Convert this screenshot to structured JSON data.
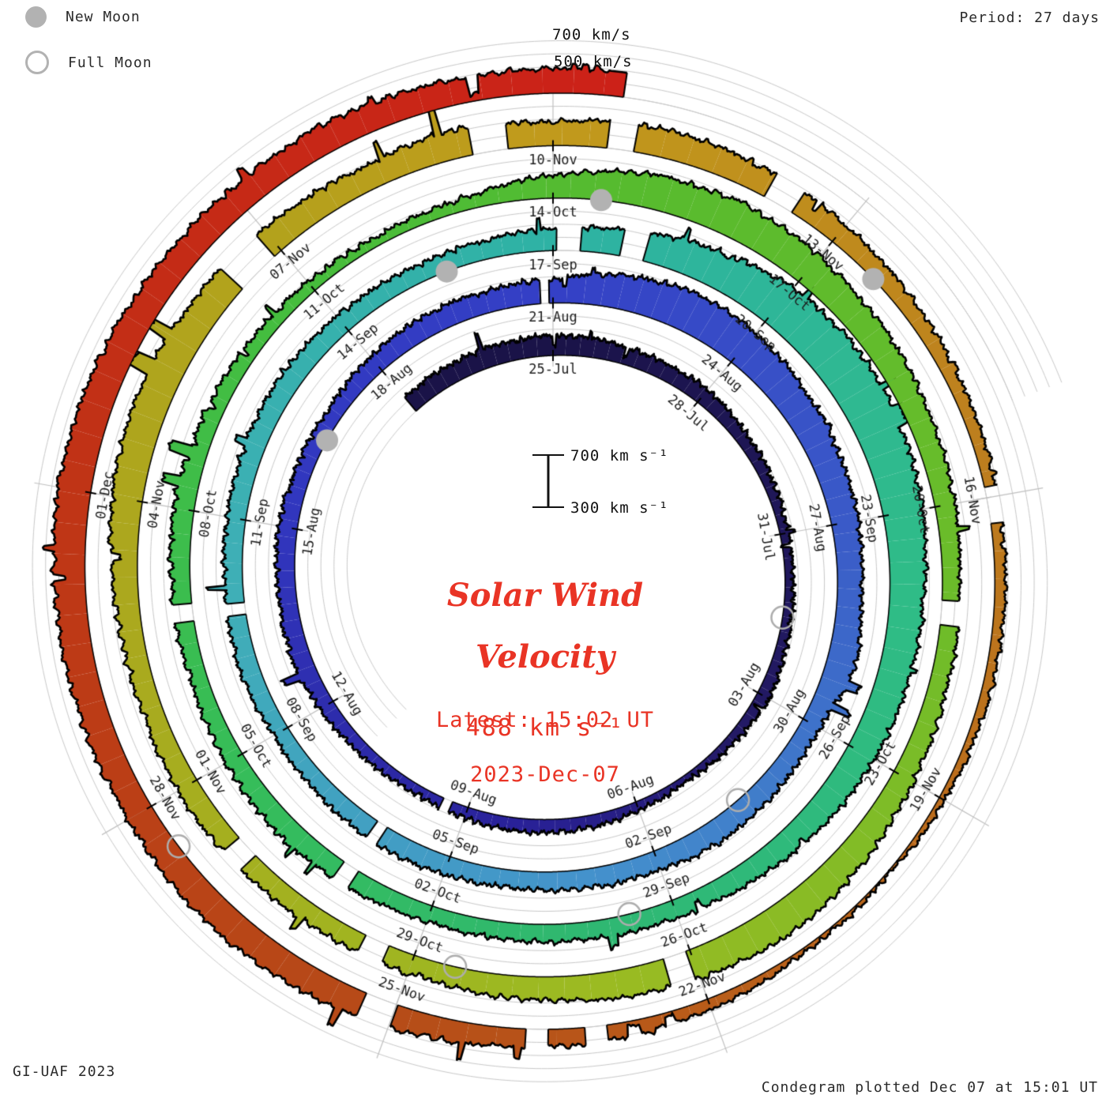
{
  "legend": {
    "new_moon": "New Moon",
    "full_moon": "Full Moon"
  },
  "header": {
    "period_label": "Period: 27 days"
  },
  "footer": {
    "credit": "GI-UAF 2023",
    "plotted": "Condegram plotted Dec 07 at 15:01 UT"
  },
  "outer_scale": {
    "line1": "700 km/s",
    "line2": "500 km/s"
  },
  "scale_bar": {
    "top_label": "700 km s⁻¹",
    "bottom_label": "300 km s⁻¹"
  },
  "center": {
    "title_line1": "Solar Wind",
    "title_line2": "Velocity",
    "current_speed": "488 km s⁻¹",
    "latest_line1": "Latest: 15:02 UT",
    "latest_line2": "2023-Dec-07"
  },
  "chart_data": {
    "type": "spiral_polar_condegram",
    "title": "Solar Wind Velocity",
    "period_days_per_revolution": 27,
    "angle_direction": "clockwise_from_top",
    "start_date": "2023-07-22",
    "end_date_utc": "2023-12-07 15:02 UT",
    "latest_value_km_s": 488,
    "velocity_axis_range_km_s": [
      300,
      700
    ],
    "velocity_gridlines_km_s": [
      300,
      400,
      500,
      600,
      700
    ],
    "ring_crossing_labels": [
      "25-Jul",
      "28-Jul",
      "31-Jul",
      "03-Aug",
      "06-Aug",
      "09-Aug",
      "12-Aug",
      "15-Aug",
      "18-Aug",
      "21-Aug",
      "24-Aug",
      "27-Aug",
      "30-Aug",
      "02-Sep",
      "05-Sep",
      "08-Sep",
      "11-Sep",
      "14-Sep",
      "17-Sep",
      "20-Sep",
      "23-Sep",
      "26-Sep",
      "29-Sep",
      "02-Oct",
      "05-Oct",
      "08-Oct",
      "11-Oct",
      "14-Oct",
      "17-Oct",
      "20-Oct",
      "23-Oct",
      "26-Oct",
      "29-Oct",
      "01-Nov",
      "04-Nov",
      "07-Nov",
      "10-Nov",
      "13-Nov",
      "16-Nov",
      "19-Nov",
      "22-Nov",
      "25-Nov",
      "28-Nov",
      "01-Dec"
    ],
    "label_interval_days": 3,
    "daily_velocity_km_s": [
      430,
      445,
      450,
      455,
      440,
      420,
      430,
      400,
      380,
      365,
      360,
      375,
      400,
      370,
      345,
      370,
      395,
      405,
      385,
      365,
      385,
      420,
      445,
      435,
      445,
      425,
      415,
      440,
      460,
      465,
      485,
      560,
      610,
      585,
      555,
      525,
      505,
      485,
      520,
      445,
      455,
      475,
      455,
      445,
      435,
      445,
      455,
      435,
      425,
      445,
      435,
      445,
      455,
      465,
      445,
      430,
      440,
      465,
      505,
      570,
      640,
      660,
      640,
      605,
      560,
      545,
      530,
      495,
      460,
      440,
      435,
      430,
      425,
      445,
      465,
      445,
      425,
      440,
      460,
      435,
      410,
      385,
      365,
      395,
      475,
      560,
      585,
      550,
      515,
      478,
      450,
      430,
      442,
      468,
      515,
      555,
      535,
      498,
      468,
      448,
      440,
      458,
      468,
      452,
      478,
      535,
      558,
      540,
      515,
      482,
      520,
      482,
      515,
      498,
      458,
      422,
      400,
      388,
      378,
      372,
      345,
      318,
      332,
      388,
      420,
      445,
      482,
      515,
      522,
      505,
      515,
      535,
      552,
      538,
      520,
      502,
      515,
      498,
      488
    ],
    "transient_spikes": [
      {
        "t": 18.6,
        "dv": 130,
        "w": 0.1
      },
      {
        "t": 35.3,
        "dv": 100,
        "w": 0.12
      },
      {
        "t": 35.65,
        "dv": 120,
        "w": 0.1
      },
      {
        "t": 49.0,
        "dv": 90,
        "w": 0.08
      },
      {
        "t": 58.9,
        "dv": 60,
        "w": 0.25
      },
      {
        "t": 66.8,
        "dv": 80,
        "w": 0.1
      },
      {
        "t": 75.3,
        "dv": 130,
        "w": 0.1
      },
      {
        "t": 75.65,
        "dv": 150,
        "w": 0.12
      },
      {
        "t": 103.3,
        "dv": 150,
        "w": 0.14
      },
      {
        "t": 103.65,
        "dv": 160,
        "w": 0.1
      },
      {
        "t": 106.9,
        "dv": 265,
        "w": 0.07
      },
      {
        "t": 120.4,
        "dv": -70,
        "w": 0.1
      },
      {
        "t": 120.75,
        "dv": -80,
        "w": 0.12
      },
      {
        "t": 134.3,
        "dv": -140,
        "w": 0.08
      }
    ],
    "data_gaps_days_since_jul25": [
      [
        15.3,
        15.45
      ],
      [
        26.82,
        26.93
      ],
      [
        43.0,
        43.15
      ],
      [
        46.7,
        46.85
      ],
      [
        54.05,
        54.35
      ],
      [
        54.9,
        55.2
      ],
      [
        70.0,
        70.2
      ],
      [
        73.7,
        73.9
      ],
      [
        88.05,
        88.3
      ],
      [
        93.05,
        93.3
      ],
      [
        96.3,
        96.55
      ],
      [
        98.0,
        98.25
      ],
      [
        104.45,
        104.9
      ],
      [
        107.2,
        107.55
      ],
      [
        108.55,
        108.8
      ],
      [
        110.2,
        110.5
      ],
      [
        113.9,
        114.25
      ],
      [
        121.0,
        121.2
      ],
      [
        121.55,
        121.75
      ],
      [
        123.0,
        123.3
      ]
    ],
    "moons": {
      "new_moon_dates": [
        "2023-08-16",
        "2023-09-15",
        "2023-10-14",
        "2023-11-13"
      ],
      "full_moon_dates": [
        "2023-08-01",
        "2023-08-31",
        "2023-09-29",
        "2023-10-28",
        "2023-11-27"
      ]
    },
    "time_color_stops": [
      [
        -3,
        "#1a1348"
      ],
      [
        0,
        "#1a1348"
      ],
      [
        10,
        "#231a66"
      ],
      [
        14,
        "#292198"
      ],
      [
        21,
        "#3136be"
      ],
      [
        27,
        "#3440c6"
      ],
      [
        33,
        "#3a5ac8"
      ],
      [
        40,
        "#4492cc"
      ],
      [
        47,
        "#3fafb7"
      ],
      [
        54,
        "#2eb2a4"
      ],
      [
        61,
        "#2fbc87"
      ],
      [
        67,
        "#2fb872"
      ],
      [
        72,
        "#36bd58"
      ],
      [
        78,
        "#46bd3c"
      ],
      [
        82,
        "#58bb2e"
      ],
      [
        88,
        "#6cbc2a"
      ],
      [
        94,
        "#9bbb22"
      ],
      [
        101,
        "#aba81e"
      ],
      [
        105,
        "#b3a21c"
      ],
      [
        108,
        "#c19a1c"
      ],
      [
        114,
        "#bd7c1e"
      ],
      [
        119,
        "#ba621a"
      ],
      [
        123,
        "#b64c18"
      ],
      [
        127,
        "#bc3c16"
      ],
      [
        131,
        "#c42c16"
      ],
      [
        135.6,
        "#cc2118"
      ]
    ],
    "grid_color": "#c9c9c9",
    "accent_red": "#e93425",
    "marker_gray": "#b2b2b2"
  }
}
